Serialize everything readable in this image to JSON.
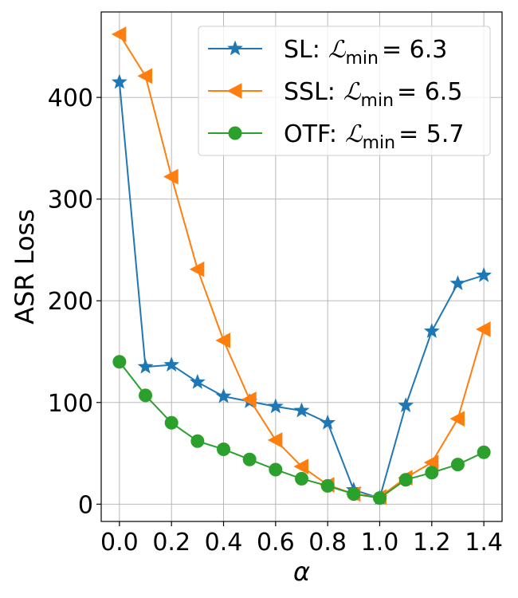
{
  "chart_data": {
    "type": "line",
    "xlabel": "α",
    "ylabel": "ASR Loss",
    "xlim": [
      -0.07,
      1.47
    ],
    "ylim": [
      -17,
      484
    ],
    "grid": true,
    "legend_position": "top-right",
    "xticks": [
      0.0,
      0.2,
      0.4,
      0.6,
      0.8,
      1.0,
      1.2,
      1.4
    ],
    "xtick_labels": [
      "0.0",
      "0.2",
      "0.4",
      "0.6",
      "0.8",
      "1.0",
      "1.2",
      "1.4"
    ],
    "yticks": [
      0,
      100,
      200,
      300,
      400
    ],
    "ytick_labels": [
      "0",
      "100",
      "200",
      "300",
      "400"
    ],
    "x": [
      0.0,
      0.1,
      0.2,
      0.3,
      0.4,
      0.5,
      0.6,
      0.7,
      0.8,
      0.9,
      1.0,
      1.1,
      1.2,
      1.3,
      1.4
    ],
    "series": [
      {
        "name": "SL",
        "legend_prefix": "SL:",
        "loss_symbol": "ℒ",
        "loss_subscript": "min",
        "loss_value": "= 6.3",
        "color": "#1f77b4",
        "marker": "star",
        "values": [
          415,
          135,
          137,
          120,
          106,
          101,
          96,
          92,
          80,
          14,
          6,
          97,
          170,
          217,
          225
        ]
      },
      {
        "name": "SSL",
        "legend_prefix": "SSL:",
        "loss_symbol": "ℒ",
        "loss_subscript": "min",
        "loss_value": "= 6.5",
        "color": "#ff7f0e",
        "marker": "triangle-left",
        "values": [
          462,
          421,
          322,
          231,
          161,
          103,
          63,
          37,
          19,
          10,
          7,
          26,
          41,
          84,
          172
        ]
      },
      {
        "name": "OTF",
        "legend_prefix": "OTF:",
        "loss_symbol": "ℒ",
        "loss_subscript": "min",
        "loss_value": "= 5.7",
        "color": "#2ca02c",
        "marker": "circle",
        "values": [
          140,
          107,
          80,
          62,
          54,
          44,
          34,
          25,
          18,
          10,
          6,
          24,
          31,
          39,
          51
        ]
      }
    ]
  }
}
